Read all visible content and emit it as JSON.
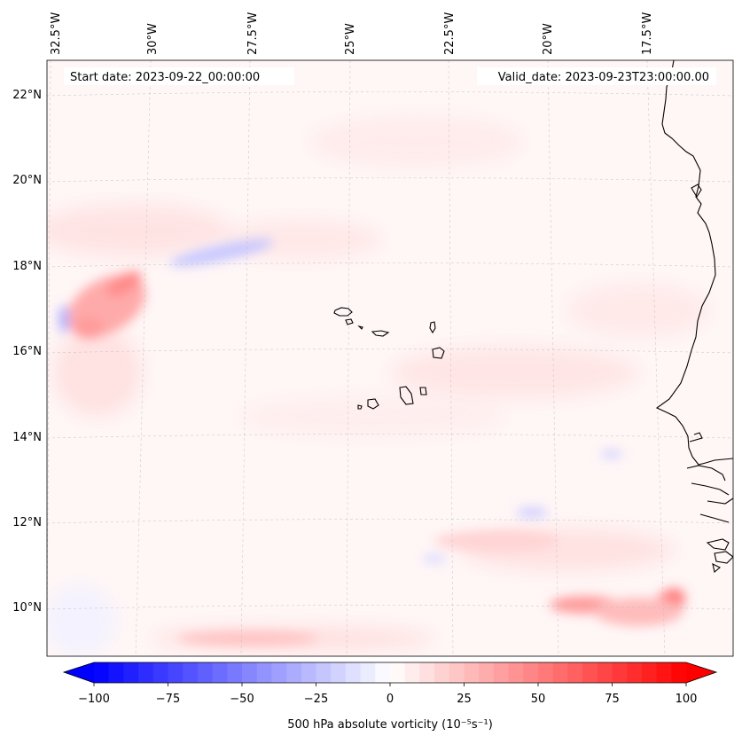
{
  "header": {
    "start_date": "Start date: 2023-09-22_00:00:00",
    "valid_date": "Valid_date: 2023-09-23T23:00:00.00"
  },
  "map": {
    "longitude_labels": [
      "32.5°W",
      "30°W",
      "27.5°W",
      "25°W",
      "22.5°W",
      "20°W",
      "17.5°W"
    ],
    "latitude_labels": [
      "22°N",
      "20°N",
      "18°N",
      "16°N",
      "14°N",
      "12°N",
      "10°N"
    ],
    "gridlines": true,
    "features": [
      "vorticity-field",
      "cabo-verde-islands",
      "west-africa-coastline"
    ]
  },
  "colorbar": {
    "label": "500 hPa absolute vorticity (10⁻⁵s⁻¹)",
    "ticks": [
      "−100",
      "−75",
      "−50",
      "−25",
      "0",
      "25",
      "50",
      "75",
      "100"
    ],
    "min": -100,
    "max": 100,
    "extend": "both",
    "colormap": "bwr",
    "low_color": "#0000ff",
    "mid_color": "#ffffff",
    "high_color": "#ff0000"
  }
}
